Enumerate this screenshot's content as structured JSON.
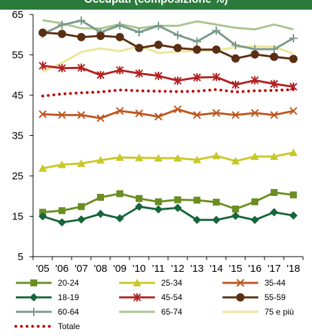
{
  "header": {
    "title": "Occupati (composizione %)"
  },
  "colors": {
    "header_bg": "#2a7a3b",
    "axis": "#000000"
  },
  "chart_data": {
    "type": "line",
    "title": "",
    "xlabel": "",
    "ylabel": "",
    "categories": [
      "'05",
      "'06",
      "'07",
      "'08",
      "'09",
      "'10",
      "'11",
      "'12",
      "'13",
      "'14",
      "'15",
      "'16",
      "'17",
      "'18"
    ],
    "ylim": [
      5,
      65
    ],
    "yticks": [
      "5",
      "15",
      "25",
      "35",
      "45",
      "55",
      "65"
    ],
    "grid": false,
    "legend_position": "bottom",
    "series": [
      {
        "name": "20-24",
        "color": "#6b8e23",
        "marker": "square",
        "dash": "solid",
        "values": [
          16.0,
          16.4,
          17.4,
          19.7,
          20.6,
          19.4,
          18.6,
          19.1,
          19.0,
          18.5,
          16.8,
          18.6,
          20.9,
          20.3
        ]
      },
      {
        "name": "25-34",
        "color": "#c8c829",
        "marker": "triangle",
        "dash": "solid",
        "values": [
          26.9,
          27.8,
          28.1,
          28.9,
          29.6,
          29.5,
          29.4,
          29.4,
          29.0,
          30.0,
          28.7,
          29.8,
          29.8,
          30.8
        ]
      },
      {
        "name": "35-44",
        "color": "#c0561f",
        "marker": "x",
        "dash": "solid",
        "values": [
          40.3,
          40.1,
          40.1,
          39.3,
          41.1,
          40.5,
          39.7,
          41.5,
          40.1,
          40.6,
          40.1,
          40.6,
          40.1,
          41.1
        ]
      },
      {
        "name": "18-19",
        "color": "#17653a",
        "marker": "diamond",
        "dash": "solid",
        "values": [
          15.0,
          13.5,
          14.2,
          15.6,
          14.5,
          17.4,
          16.7,
          17.1,
          14.1,
          14.1,
          15.1,
          14.1,
          16.0,
          15.2
        ]
      },
      {
        "name": "45-54",
        "color": "#b22222",
        "marker": "star",
        "dash": "solid",
        "values": [
          52.3,
          51.7,
          51.8,
          50.0,
          51.2,
          50.4,
          49.8,
          48.6,
          49.4,
          49.5,
          47.6,
          48.7,
          47.8,
          47.1
        ]
      },
      {
        "name": "55-59",
        "color": "#5a2e12",
        "marker": "circle",
        "dash": "solid",
        "values": [
          60.5,
          60.2,
          59.4,
          59.7,
          59.4,
          56.7,
          57.5,
          56.7,
          56.3,
          56.3,
          54.1,
          55.1,
          54.5,
          54.0
        ]
      },
      {
        "name": "60-64",
        "color": "#7a9a8a",
        "marker": "plus",
        "dash": "solid",
        "values": [
          60.2,
          62.4,
          63.5,
          60.6,
          62.3,
          60.6,
          62.2,
          59.9,
          58.3,
          61.0,
          57.4,
          56.4,
          56.4,
          59.1
        ]
      },
      {
        "name": "65-74",
        "color": "#a9c48f",
        "marker": "none",
        "dash": "solid",
        "values": [
          63.6,
          62.8,
          61.6,
          61.5,
          62.6,
          61.6,
          62.2,
          62.2,
          63.3,
          62.5,
          61.7,
          61.3,
          62.5,
          61.3
        ]
      },
      {
        "name": "75 e più",
        "color": "#ece596",
        "marker": "none",
        "dash": "solid",
        "values": [
          50.8,
          53.0,
          55.7,
          56.6,
          55.9,
          57.2,
          55.5,
          55.8,
          56.0,
          56.1,
          56.9,
          57.1,
          57.0,
          55.3
        ]
      },
      {
        "name": "Totale",
        "color": "#c00000",
        "marker": "none",
        "dash": "dotted",
        "values": [
          44.8,
          45.3,
          45.6,
          45.8,
          46.3,
          46.1,
          46.0,
          45.9,
          46.0,
          46.4,
          45.8,
          46.1,
          46.2,
          46.4
        ]
      }
    ]
  }
}
